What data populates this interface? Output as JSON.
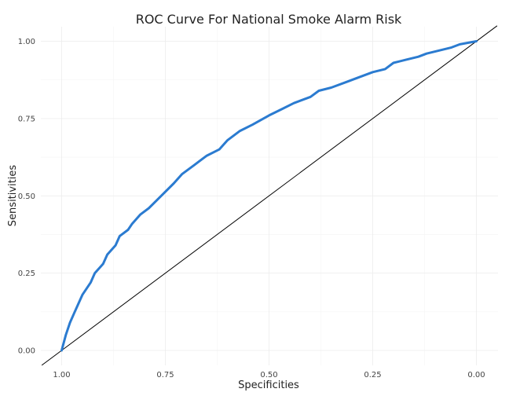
{
  "chart_data": {
    "type": "line",
    "title": "ROC Curve For National Smoke Alarm Risk",
    "xlabel": "Specificities",
    "ylabel": "Sensitivities",
    "x_reversed": true,
    "xlim": [
      1.04,
      -0.05
    ],
    "ylim": [
      -0.02,
      1.05
    ],
    "x_ticks": [
      1.0,
      0.75,
      0.5,
      0.25,
      0.0
    ],
    "x_tick_labels": [
      "1.00",
      "0.75",
      "0.50",
      "0.25",
      "0.00"
    ],
    "y_ticks": [
      0.0,
      0.25,
      0.5,
      0.75,
      1.0
    ],
    "y_tick_labels": [
      "0.00",
      "0.25",
      "0.50",
      "0.75",
      "1.00"
    ],
    "grid": true,
    "reference_line": {
      "intercept": 1,
      "slope": 1,
      "color": "#000000"
    },
    "series": [
      {
        "color": "#2b7bd0",
        "x": [
          1.0,
          0.99,
          0.98,
          0.97,
          0.96,
          0.95,
          0.93,
          0.92,
          0.9,
          0.89,
          0.87,
          0.86,
          0.84,
          0.83,
          0.81,
          0.79,
          0.76,
          0.73,
          0.71,
          0.68,
          0.65,
          0.62,
          0.6,
          0.57,
          0.54,
          0.5,
          0.47,
          0.44,
          0.4,
          0.38,
          0.35,
          0.31,
          0.29,
          0.25,
          0.22,
          0.2,
          0.17,
          0.14,
          0.12,
          0.09,
          0.06,
          0.04,
          0.0
        ],
        "y": [
          0.0,
          0.05,
          0.09,
          0.12,
          0.15,
          0.18,
          0.22,
          0.25,
          0.28,
          0.31,
          0.34,
          0.37,
          0.39,
          0.41,
          0.44,
          0.46,
          0.5,
          0.54,
          0.57,
          0.6,
          0.63,
          0.65,
          0.68,
          0.71,
          0.73,
          0.76,
          0.78,
          0.8,
          0.82,
          0.84,
          0.85,
          0.87,
          0.88,
          0.9,
          0.91,
          0.93,
          0.94,
          0.95,
          0.96,
          0.97,
          0.98,
          0.99,
          1.0
        ]
      }
    ]
  }
}
